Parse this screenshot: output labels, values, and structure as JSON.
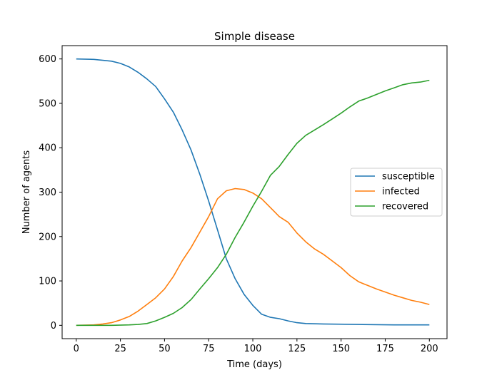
{
  "chart_data": {
    "type": "line",
    "title": "Simple disease",
    "xlabel": "Time (days)",
    "ylabel": "Number of agents",
    "xlim": [
      -8,
      210
    ],
    "ylim": [
      -30,
      630
    ],
    "xticks": [
      0,
      25,
      50,
      75,
      100,
      125,
      150,
      175,
      200
    ],
    "yticks": [
      0,
      100,
      200,
      300,
      400,
      500,
      600
    ],
    "grid": false,
    "legend_position": "center-right",
    "series": [
      {
        "name": "susceptible",
        "color": "#1f77b4",
        "points": [
          [
            0,
            600
          ],
          [
            10,
            599
          ],
          [
            15,
            597
          ],
          [
            20,
            595
          ],
          [
            25,
            590
          ],
          [
            30,
            582
          ],
          [
            35,
            570
          ],
          [
            40,
            555
          ],
          [
            45,
            538
          ],
          [
            50,
            510
          ],
          [
            55,
            480
          ],
          [
            60,
            440
          ],
          [
            65,
            395
          ],
          [
            70,
            340
          ],
          [
            75,
            280
          ],
          [
            80,
            215
          ],
          [
            85,
            150
          ],
          [
            90,
            105
          ],
          [
            95,
            70
          ],
          [
            100,
            45
          ],
          [
            105,
            25
          ],
          [
            110,
            18
          ],
          [
            115,
            15
          ],
          [
            120,
            10
          ],
          [
            125,
            6
          ],
          [
            130,
            4
          ],
          [
            140,
            3
          ],
          [
            160,
            2
          ],
          [
            180,
            1
          ],
          [
            200,
            1
          ]
        ]
      },
      {
        "name": "infected",
        "color": "#ff7f0e",
        "points": [
          [
            0,
            0
          ],
          [
            10,
            1
          ],
          [
            15,
            3
          ],
          [
            20,
            6
          ],
          [
            25,
            12
          ],
          [
            30,
            20
          ],
          [
            35,
            32
          ],
          [
            40,
            47
          ],
          [
            45,
            62
          ],
          [
            50,
            82
          ],
          [
            55,
            110
          ],
          [
            60,
            145
          ],
          [
            65,
            175
          ],
          [
            70,
            210
          ],
          [
            75,
            245
          ],
          [
            80,
            285
          ],
          [
            85,
            303
          ],
          [
            90,
            308
          ],
          [
            95,
            306
          ],
          [
            100,
            298
          ],
          [
            105,
            285
          ],
          [
            110,
            265
          ],
          [
            115,
            245
          ],
          [
            120,
            232
          ],
          [
            125,
            208
          ],
          [
            130,
            188
          ],
          [
            135,
            172
          ],
          [
            140,
            160
          ],
          [
            145,
            145
          ],
          [
            150,
            130
          ],
          [
            155,
            112
          ],
          [
            160,
            98
          ],
          [
            165,
            90
          ],
          [
            170,
            82
          ],
          [
            175,
            75
          ],
          [
            180,
            68
          ],
          [
            185,
            62
          ],
          [
            190,
            56
          ],
          [
            195,
            52
          ],
          [
            200,
            47
          ]
        ]
      },
      {
        "name": "recovered",
        "color": "#2ca02c",
        "points": [
          [
            0,
            0
          ],
          [
            20,
            0
          ],
          [
            30,
            1
          ],
          [
            35,
            2
          ],
          [
            40,
            4
          ],
          [
            45,
            10
          ],
          [
            50,
            18
          ],
          [
            55,
            27
          ],
          [
            60,
            40
          ],
          [
            65,
            58
          ],
          [
            70,
            82
          ],
          [
            75,
            105
          ],
          [
            80,
            130
          ],
          [
            85,
            160
          ],
          [
            90,
            198
          ],
          [
            95,
            232
          ],
          [
            100,
            268
          ],
          [
            105,
            302
          ],
          [
            110,
            338
          ],
          [
            115,
            358
          ],
          [
            120,
            385
          ],
          [
            125,
            410
          ],
          [
            130,
            428
          ],
          [
            135,
            440
          ],
          [
            140,
            452
          ],
          [
            145,
            465
          ],
          [
            150,
            478
          ],
          [
            155,
            492
          ],
          [
            160,
            505
          ],
          [
            165,
            512
          ],
          [
            170,
            520
          ],
          [
            175,
            528
          ],
          [
            180,
            535
          ],
          [
            185,
            542
          ],
          [
            190,
            546
          ],
          [
            195,
            548
          ],
          [
            200,
            552
          ]
        ]
      }
    ]
  }
}
